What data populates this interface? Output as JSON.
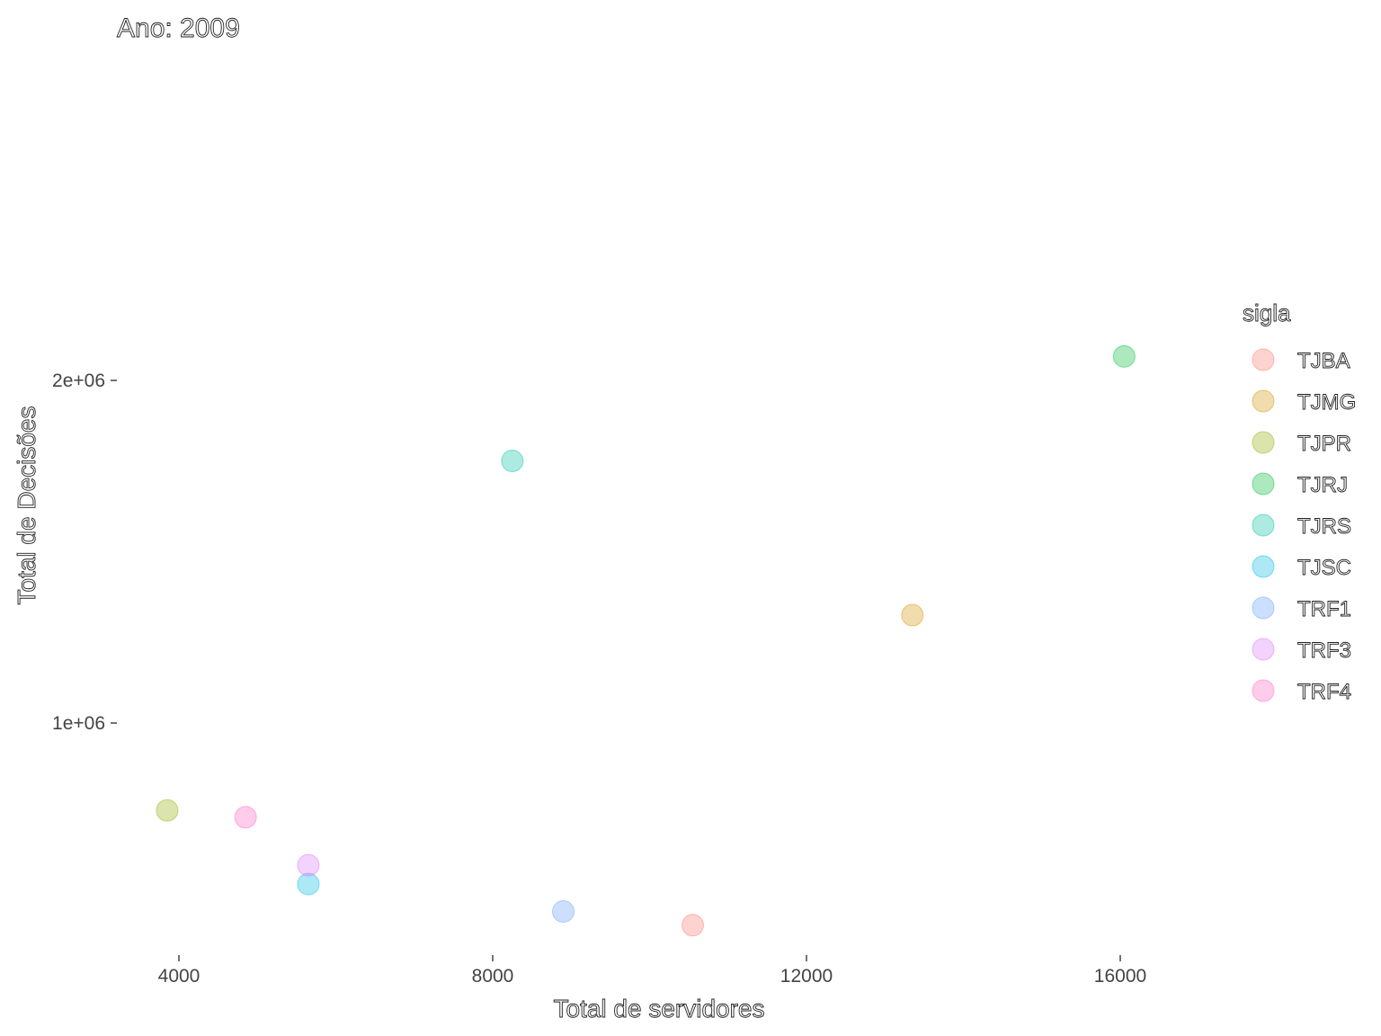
{
  "chart_data": {
    "type": "scatter",
    "title": "Ano: 2009",
    "xlabel": "Total de servidores",
    "ylabel": "Total de Decisões",
    "xlim": [
      2000,
      18500
    ],
    "ylim": [
      200000,
      3000000
    ],
    "x_ticks": [
      4000,
      8000,
      12000,
      16000
    ],
    "x_tick_labels": [
      "4000",
      "8000",
      "12000",
      "16000"
    ],
    "y_ticks": [
      1000000,
      2000000
    ],
    "y_tick_labels": [
      "1e+06",
      "2e+06"
    ],
    "grid": false,
    "legend": {
      "title": "sigla",
      "position": "right"
    },
    "series": [
      {
        "name": "TJBA",
        "color": "#F8766D",
        "x": 10550,
        "y": 410000
      },
      {
        "name": "TJMG",
        "color": "#D39200",
        "x": 13350,
        "y": 1315000
      },
      {
        "name": "TJPR",
        "color": "#93AA00",
        "x": 3850,
        "y": 745000
      },
      {
        "name": "TJRJ",
        "color": "#00BA38",
        "x": 16050,
        "y": 2070000
      },
      {
        "name": "TJRS",
        "color": "#00C19F",
        "x": 8250,
        "y": 1765000
      },
      {
        "name": "TJSC",
        "color": "#00B9E3",
        "x": 5650,
        "y": 530000
      },
      {
        "name": "TRF1",
        "color": "#619CFF",
        "x": 8900,
        "y": 450000
      },
      {
        "name": "TRF3",
        "color": "#DB72FB",
        "x": 5650,
        "y": 585000
      },
      {
        "name": "TRF4",
        "color": "#FF61C3",
        "x": 4850,
        "y": 725000
      }
    ]
  }
}
